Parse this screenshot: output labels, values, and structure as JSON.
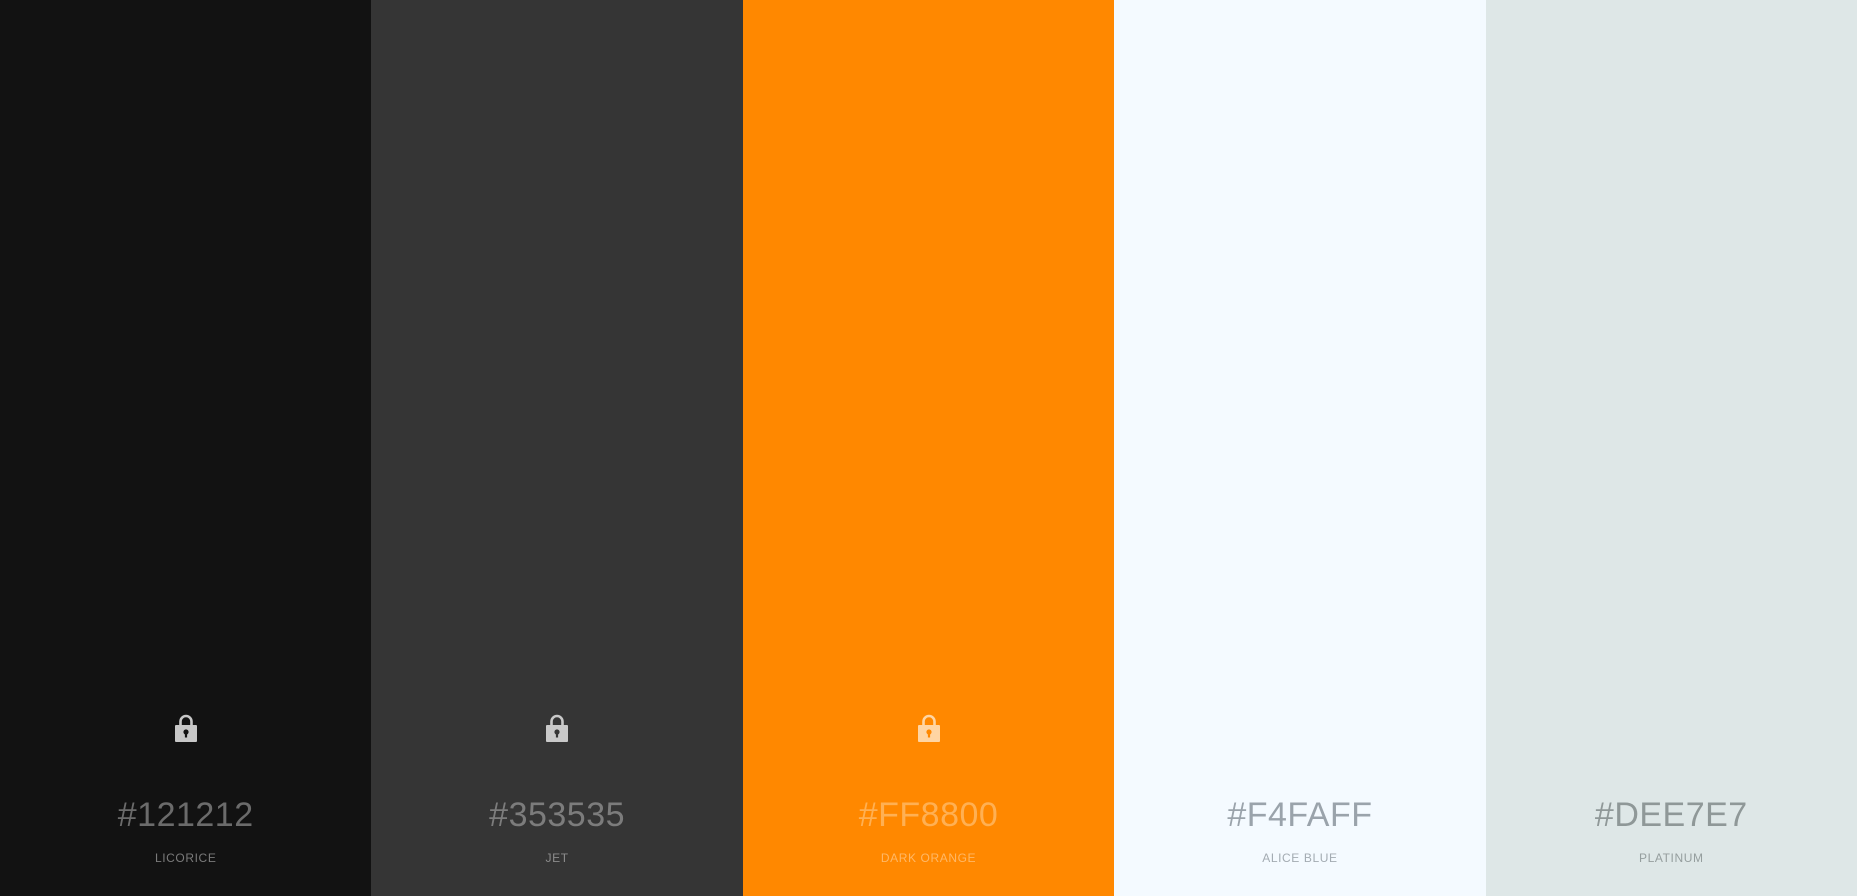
{
  "swatches": [
    {
      "hex": "#121212",
      "name": "LICORICE",
      "bg": "#121212",
      "text_color": "#6b6b6b",
      "name_color": "#7a7a7a",
      "lock_color": "#c7c7c7",
      "lock_hole": "#121212",
      "lock_icon": "lock-icon",
      "locked": true
    },
    {
      "hex": "#353535",
      "name": "JET",
      "bg": "#353535",
      "text_color": "#7c7c7c",
      "name_color": "#8c8c8c",
      "lock_color": "#c9c9c9",
      "lock_hole": "#353535",
      "lock_icon": "lock-icon",
      "locked": true
    },
    {
      "hex": "#FF8800",
      "name": "DARK ORANGE",
      "bg": "#FF8800",
      "text_color": "#ffb053",
      "name_color": "#ffb866",
      "lock_color": "#ffd5a3",
      "lock_hole": "#FF8800",
      "lock_icon": "lock-icon",
      "locked": true
    },
    {
      "hex": "#F4FAFF",
      "name": "ALICE BLUE",
      "bg": "#F4FAFF",
      "text_color": "#9aa3ab",
      "name_color": "#a3abb2",
      "lock_icon": "lock-icon",
      "locked": false
    },
    {
      "hex": "#DEE7E7",
      "name": "PLATINUM",
      "bg": "#DEE7E7",
      "text_color": "#8f9898",
      "name_color": "#959e9e",
      "lock_icon": "lock-icon",
      "locked": false
    }
  ]
}
